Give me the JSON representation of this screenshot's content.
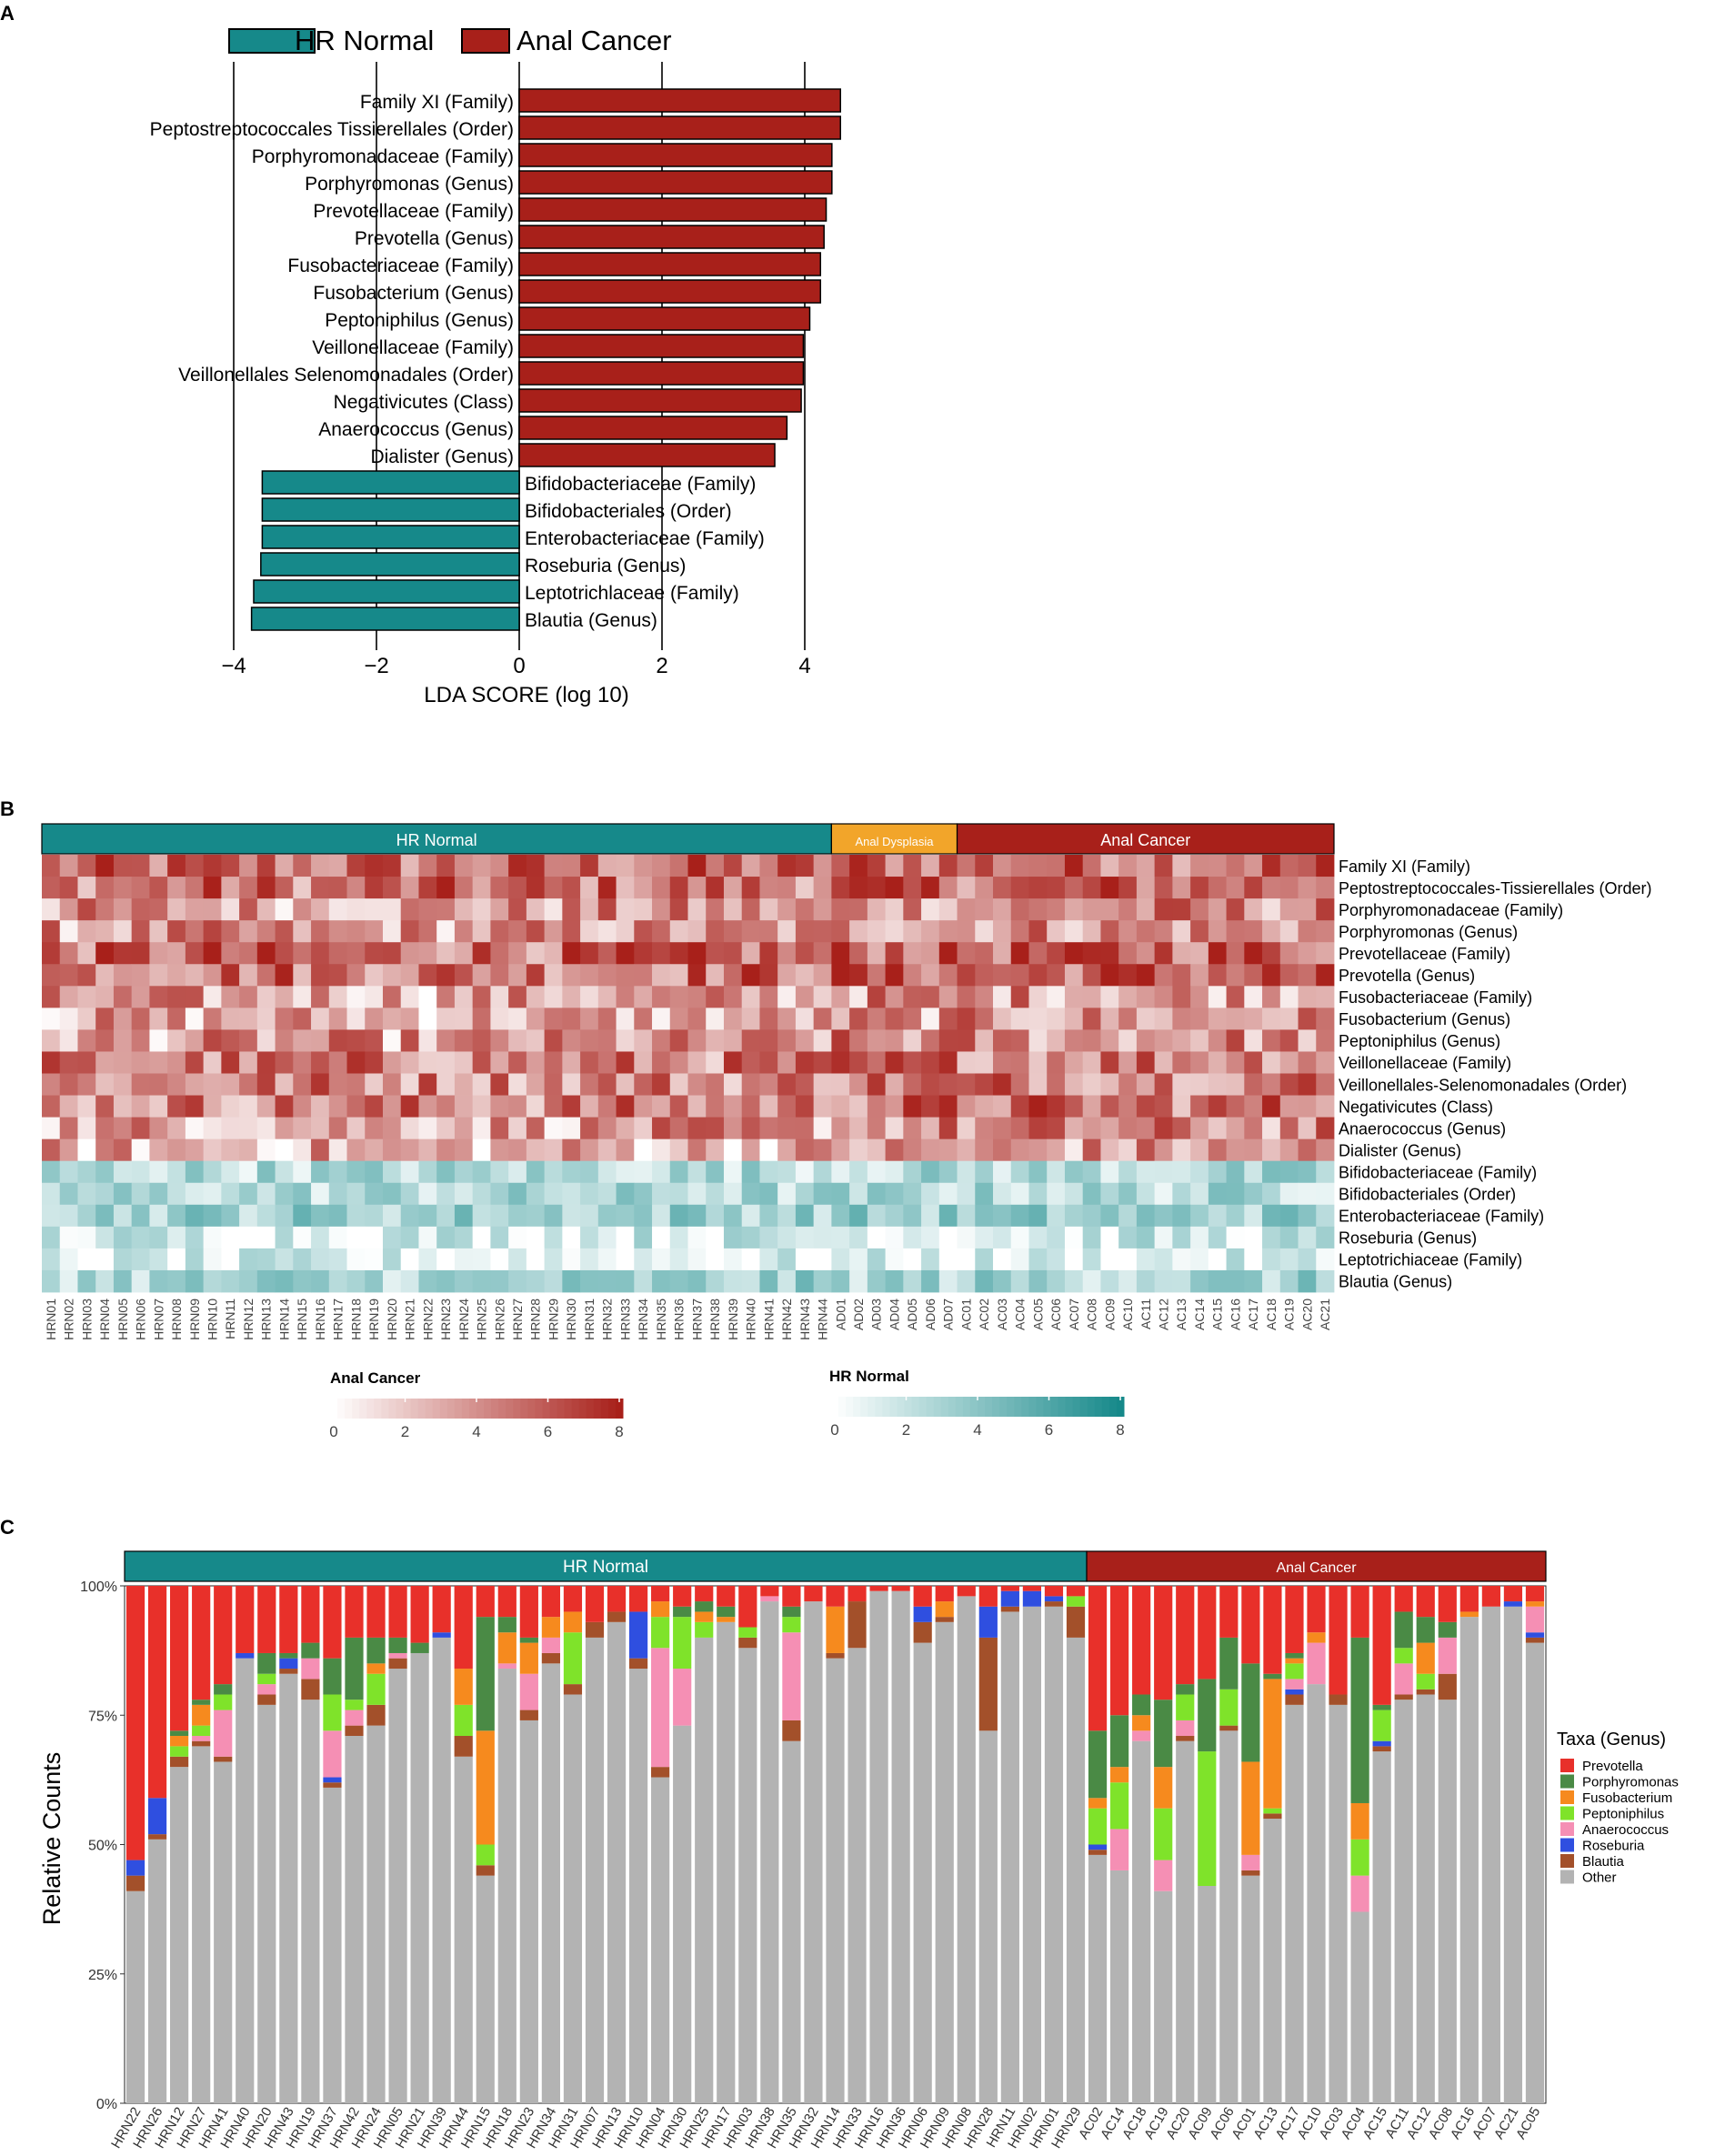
{
  "panel_labels": [
    "A",
    "B",
    "C"
  ],
  "colors": {
    "hr_normal": "#16898a",
    "anal_cancer": "#a8201a",
    "anal_dysplasia": "#f2a52a",
    "grid": "#333333"
  },
  "chart_data": [
    {
      "id": "A",
      "type": "bar",
      "orientation": "horizontal",
      "title": "",
      "xlabel": "LDA SCORE (log 10)",
      "xlim": [
        -4.5,
        4.5
      ],
      "xticks": [
        -4,
        -2,
        0,
        2,
        4
      ],
      "xtick_labels": [
        "−4",
        "−2",
        "0",
        "2",
        "4"
      ],
      "legend": [
        "HR Normal",
        "Anal Cancer"
      ],
      "categories": [
        "Family XI (Family)",
        "Peptostreptococcales Tissierellales (Order)",
        "Porphyromonadaceae (Family)",
        "Porphyromonas (Genus)",
        "Prevotellaceae (Family)",
        "Prevotella (Genus)",
        "Fusobacteriaceae (Family)",
        "Fusobacterium (Genus)",
        "Peptoniphilus (Genus)",
        "Veillonellaceae (Family)",
        "Veillonellales Selenomonadales (Order)",
        "Negativicutes (Class)",
        "Anaerococcus (Genus)",
        "Dialister (Genus)",
        "Bifidobacteriaceae (Family)",
        "Bifidobacteriales (Order)",
        "Enterobacteriaceae (Family)",
        "Roseburia (Genus)",
        "Leptotrichlaceae (Family)",
        "Blautia (Genus)"
      ],
      "groups": [
        "Anal Cancer",
        "Anal Cancer",
        "Anal Cancer",
        "Anal Cancer",
        "Anal Cancer",
        "Anal Cancer",
        "Anal Cancer",
        "Anal Cancer",
        "Anal Cancer",
        "Anal Cancer",
        "Anal Cancer",
        "Anal Cancer",
        "Anal Cancer",
        "Anal Cancer",
        "HR Normal",
        "HR Normal",
        "HR Normal",
        "HR Normal",
        "HR Normal",
        "HR Normal"
      ],
      "values": [
        4.5,
        4.5,
        4.38,
        4.38,
        4.3,
        4.27,
        4.22,
        4.22,
        4.07,
        3.98,
        3.98,
        3.95,
        3.75,
        3.58,
        -3.6,
        -3.6,
        -3.6,
        -3.62,
        -3.72,
        -3.75
      ]
    },
    {
      "id": "B",
      "type": "heatmap",
      "groups": [
        {
          "name": "HR Normal",
          "count": 44
        },
        {
          "name": "Anal Dysplasia",
          "count": 7
        },
        {
          "name": "Anal Cancer",
          "count": 21
        }
      ],
      "samples": [
        "HRN01",
        "HRN02",
        "HRN03",
        "HRN04",
        "HRN05",
        "HRN06",
        "HRN07",
        "HRN08",
        "HRN09",
        "HRN10",
        "HRN11",
        "HRN12",
        "HRN13",
        "HRN14",
        "HRN15",
        "HRN16",
        "HRN17",
        "HRN18",
        "HRN19",
        "HRN20",
        "HRN21",
        "HRN22",
        "HRN23",
        "HRN24",
        "HRN25",
        "HRN26",
        "HRN27",
        "HRN28",
        "HRN29",
        "HRN30",
        "HRN31",
        "HRN32",
        "HRN33",
        "HRN34",
        "HRN35",
        "HRN36",
        "HRN37",
        "HRN38",
        "HRN39",
        "HRN40",
        "HRN41",
        "HRN42",
        "HRN43",
        "HRN44",
        "AD01",
        "AD02",
        "AD03",
        "AD04",
        "AD05",
        "AD06",
        "AD07",
        "AC01",
        "AC02",
        "AC03",
        "AC04",
        "AC05",
        "AC06",
        "AC07",
        "AC08",
        "AC09",
        "AC10",
        "AC11",
        "AC12",
        "AC13",
        "AC14",
        "AC15",
        "AC16",
        "AC17",
        "AC18",
        "AC19",
        "AC20",
        "AC21"
      ],
      "rows": [
        "Family XI (Family)",
        "Peptostreptococcales-Tissierellales (Order)",
        "Porphyromonadaceae (Family)",
        "Porphyromonas (Genus)",
        "Prevotellaceae (Family)",
        "Prevotella (Genus)",
        "Fusobacteriaceae (Family)",
        "Fusobacterium (Genus)",
        "Peptoniphilus (Genus)",
        "Veillonellaceae (Family)",
        "Veillonellales-Selenomonadales (Order)",
        "Negativicutes (Class)",
        "Anaerococcus (Genus)",
        "Dialister (Genus)",
        "Bifidobacteriaceae (Family)",
        "Bifidobacteriales (Order)",
        "Enterobacteriaceae (Family)",
        "Roseburia (Genus)",
        "Leptotrichiaceae (Family)",
        "Blautia (Genus)"
      ],
      "row_scale": [
        "Anal Cancer",
        "Anal Cancer",
        "Anal Cancer",
        "Anal Cancer",
        "Anal Cancer",
        "Anal Cancer",
        "Anal Cancer",
        "Anal Cancer",
        "Anal Cancer",
        "Anal Cancer",
        "Anal Cancer",
        "Anal Cancer",
        "Anal Cancer",
        "Anal Cancer",
        "HR Normal",
        "HR Normal",
        "HR Normal",
        "HR Normal",
        "HR Normal",
        "HR Normal"
      ],
      "row_base_means": [
        5.0,
        5.0,
        3.5,
        3.5,
        5.2,
        5.2,
        3.2,
        3.0,
        3.4,
        4.4,
        4.4,
        4.4,
        3.4,
        2.8,
        2.6,
        2.6,
        3.4,
        1.6,
        0.9,
        3.0
      ],
      "values_note": "cell values approximated; generated pseudo-randomly around row means",
      "legends": [
        {
          "title": "Anal Cancer",
          "ticks": [
            "0",
            "2",
            "4",
            "6",
            "8"
          ],
          "range": [
            0,
            8
          ]
        },
        {
          "title": "HR Normal",
          "ticks": [
            "0",
            "2",
            "4",
            "6",
            "8"
          ],
          "range": [
            0,
            8
          ]
        }
      ]
    },
    {
      "id": "C",
      "type": "stacked-bar",
      "ylabel": "Relative Counts",
      "ylim": [
        0,
        100
      ],
      "yticks": [
        "0%",
        "25%",
        "50%",
        "75%",
        "100%"
      ],
      "legend_title": "Taxa (Genus)",
      "taxa": [
        "Prevotella",
        "Porphyromonas",
        "Fusobacterium",
        "Peptoniphilus",
        "Anaerococcus",
        "Roseburia",
        "Blautia",
        "Other"
      ],
      "taxa_colors": [
        "#e8302a",
        "#4a8a45",
        "#f68a1e",
        "#7fe32a",
        "#f58fb4",
        "#2f4fe0",
        "#a3502a",
        "#b3b3b3"
      ],
      "stack_order_bottom_to_top": [
        "Other",
        "Blautia",
        "Roseburia",
        "Anaerococcus",
        "Peptoniphilus",
        "Fusobacterium",
        "Porphyromonas",
        "Prevotella"
      ],
      "groups": [
        {
          "name": "HR Normal",
          "count": 44
        },
        {
          "name": "Anal Cancer",
          "count": 21
        }
      ],
      "samples": [
        "HRN22",
        "HRN26",
        "HRN12",
        "HRN27",
        "HRN41",
        "HRN40",
        "HRN20",
        "HRN43",
        "HRN19",
        "HRN37",
        "HRN42",
        "HRN24",
        "HRN05",
        "HRN21",
        "HRN39",
        "HRN44",
        "HRN15",
        "HRN18",
        "HRN23",
        "HRN34",
        "HRN31",
        "HRN07",
        "HRN13",
        "HRN10",
        "HRN04",
        "HRN30",
        "HRN25",
        "HRN17",
        "HRN03",
        "HRN38",
        "HRN35",
        "HRN32",
        "HRN14",
        "HRN33",
        "HRN16",
        "HRN36",
        "HRN06",
        "HRN09",
        "HRN08",
        "HRN28",
        "HRN11",
        "HRN02",
        "HRN01",
        "HRN29",
        "AC02",
        "AC14",
        "AC18",
        "AC19",
        "AC20",
        "AC09",
        "AC06",
        "AC01",
        "AC13",
        "AC17",
        "AC10",
        "AC03",
        "AC04",
        "AC15",
        "AC11",
        "AC12",
        "AC08",
        "AC16",
        "AC07",
        "AC21",
        "AC05"
      ],
      "values_note": "percent per sample in order [Other, Blautia, Roseburia, Anaerococcus, Peptoniphilus, Fusobacterium, Porphyromonas, Prevotella]",
      "values": [
        [
          41,
          3,
          3,
          0,
          0,
          0,
          0,
          53
        ],
        [
          51,
          1,
          7,
          0,
          0,
          0,
          0,
          41
        ],
        [
          65,
          2,
          0,
          0,
          2,
          2,
          1,
          28
        ],
        [
          69,
          1,
          0,
          1,
          2,
          4,
          1,
          22
        ],
        [
          66,
          1,
          0,
          9,
          3,
          0,
          2,
          19
        ],
        [
          86,
          0,
          1,
          0,
          0,
          0,
          0,
          13
        ],
        [
          77,
          2,
          0,
          2,
          2,
          0,
          4,
          13
        ],
        [
          83,
          1,
          2,
          0,
          0,
          0,
          1,
          13
        ],
        [
          78,
          4,
          0,
          4,
          0,
          0,
          3,
          11
        ],
        [
          61,
          1,
          1,
          9,
          7,
          0,
          7,
          14
        ],
        [
          71,
          2,
          0,
          3,
          2,
          0,
          12,
          10
        ],
        [
          73,
          4,
          0,
          0,
          6,
          2,
          5,
          10
        ],
        [
          84,
          2,
          0,
          1,
          0,
          0,
          3,
          10
        ],
        [
          87,
          0,
          0,
          0,
          0,
          0,
          2,
          11
        ],
        [
          90,
          0,
          1,
          0,
          0,
          0,
          0,
          9
        ],
        [
          67,
          4,
          0,
          0,
          6,
          7,
          0,
          16
        ],
        [
          44,
          2,
          0,
          0,
          4,
          22,
          22,
          6
        ],
        [
          84,
          0,
          0,
          1,
          0,
          6,
          3,
          6
        ],
        [
          74,
          2,
          0,
          7,
          0,
          6,
          1,
          10
        ],
        [
          85,
          2,
          0,
          3,
          0,
          4,
          0,
          6
        ],
        [
          79,
          2,
          0,
          0,
          10,
          4,
          0,
          5
        ],
        [
          90,
          3,
          0,
          0,
          0,
          0,
          0,
          7
        ],
        [
          93,
          2,
          0,
          0,
          0,
          0,
          0,
          5
        ],
        [
          84,
          2,
          9,
          0,
          0,
          0,
          0,
          5
        ],
        [
          63,
          2,
          0,
          23,
          6,
          3,
          0,
          3
        ],
        [
          73,
          0,
          0,
          11,
          10,
          0,
          2,
          4
        ],
        [
          90,
          0,
          0,
          0,
          3,
          2,
          2,
          3
        ],
        [
          93,
          0,
          0,
          0,
          0,
          1,
          2,
          4
        ],
        [
          88,
          2,
          0,
          0,
          2,
          0,
          0,
          8
        ],
        [
          97,
          0,
          0,
          1,
          0,
          0,
          0,
          2
        ],
        [
          70,
          4,
          0,
          17,
          3,
          0,
          2,
          4
        ],
        [
          97,
          0,
          0,
          0,
          0,
          0,
          0,
          3
        ],
        [
          86,
          1,
          0,
          0,
          0,
          9,
          0,
          4
        ],
        [
          88,
          9,
          0,
          0,
          0,
          0,
          0,
          3
        ],
        [
          99,
          0,
          0,
          0,
          0,
          0,
          0,
          1
        ],
        [
          99,
          0,
          0,
          0,
          0,
          0,
          0,
          1
        ],
        [
          89,
          4,
          3,
          0,
          0,
          0,
          0,
          4
        ],
        [
          93,
          1,
          0,
          0,
          0,
          3,
          0,
          3
        ],
        [
          98,
          0,
          0,
          0,
          0,
          0,
          0,
          2
        ],
        [
          72,
          18,
          6,
          0,
          0,
          0,
          0,
          4
        ],
        [
          95,
          1,
          3,
          0,
          0,
          0,
          0,
          1
        ],
        [
          96,
          0,
          3,
          0,
          0,
          0,
          0,
          1
        ],
        [
          96,
          1,
          1,
          0,
          0,
          0,
          0,
          2
        ],
        [
          90,
          6,
          0,
          0,
          2,
          0,
          0,
          2
        ],
        [
          48,
          1,
          1,
          0,
          7,
          2,
          13,
          28
        ],
        [
          45,
          0,
          0,
          8,
          9,
          3,
          10,
          25
        ],
        [
          70,
          0,
          0,
          2,
          0,
          3,
          4,
          21
        ],
        [
          41,
          0,
          0,
          6,
          10,
          8,
          13,
          22
        ],
        [
          70,
          1,
          0,
          3,
          5,
          0,
          2,
          19
        ],
        [
          42,
          0,
          0,
          0,
          26,
          0,
          14,
          18
        ],
        [
          72,
          1,
          0,
          0,
          7,
          0,
          10,
          10
        ],
        [
          44,
          1,
          0,
          3,
          0,
          18,
          19,
          15
        ],
        [
          55,
          1,
          0,
          0,
          1,
          25,
          1,
          17
        ],
        [
          77,
          2,
          1,
          2,
          3,
          1,
          1,
          13
        ],
        [
          81,
          0,
          0,
          8,
          0,
          2,
          0,
          9
        ],
        [
          77,
          2,
          0,
          0,
          0,
          0,
          0,
          21
        ],
        [
          37,
          0,
          0,
          7,
          7,
          7,
          32,
          10
        ],
        [
          68,
          1,
          1,
          0,
          6,
          0,
          1,
          23
        ],
        [
          78,
          1,
          0,
          6,
          3,
          0,
          7,
          5
        ],
        [
          79,
          1,
          0,
          0,
          3,
          6,
          5,
          6
        ],
        [
          78,
          5,
          0,
          7,
          0,
          0,
          3,
          7
        ],
        [
          94,
          0,
          0,
          0,
          0,
          1,
          0,
          5
        ],
        [
          96,
          0,
          0,
          0,
          0,
          0,
          0,
          4
        ],
        [
          96,
          0,
          1,
          0,
          0,
          0,
          0,
          3
        ],
        [
          89,
          1,
          1,
          5,
          0,
          1,
          0,
          3
        ]
      ]
    }
  ]
}
